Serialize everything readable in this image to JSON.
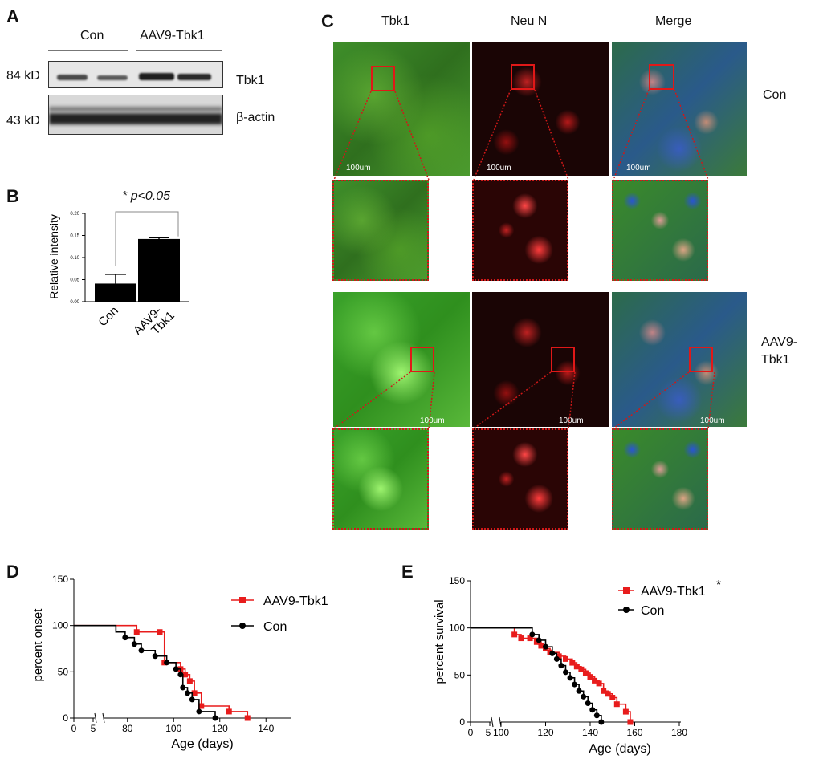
{
  "panelA": {
    "letter": "A",
    "group_con": "Con",
    "group_aav": "AAV9-Tbk1",
    "kd84": "84 kD",
    "kd43": "43 kD",
    "protein_tbk1": "Tbk1",
    "protein_actin": "β-actin"
  },
  "panelB": {
    "letter": "B",
    "sig_star": "*",
    "sig_p": "p<0.05",
    "chart_data": {
      "type": "bar",
      "categories": [
        "Con",
        "AAV9-Tbk1"
      ],
      "category_lines": [
        [
          "Con"
        ],
        [
          "AAV9-",
          "Tbk1"
        ]
      ],
      "values": [
        0.041,
        0.142
      ],
      "errors": [
        0.021,
        0.003
      ],
      "ylabel": "Relative intensity",
      "ylim": [
        0,
        0.2
      ],
      "yticks": [
        "0.00",
        "0.05",
        "0.10",
        "0.15",
        "0.20"
      ]
    }
  },
  "panelC": {
    "letter": "C",
    "col_tbk1": "Tbk1",
    "col_neun": "Neu N",
    "col_merge": "Merge",
    "row_con": "Con",
    "row_aav_line1": "AAV9-",
    "row_aav_line2": "Tbk1",
    "scale": "100um"
  },
  "panelD": {
    "letter": "D",
    "chart_data": {
      "type": "line",
      "ylabel": "percent onset",
      "xlabel": "Age (days)",
      "ylim": [
        0,
        150
      ],
      "yticks": [
        0,
        50,
        100,
        150
      ],
      "xticks": [
        "0",
        "5",
        "80",
        "100",
        "120",
        "140"
      ],
      "legend_position": "top-right",
      "series": [
        {
          "name": "AAV9-Tbk1",
          "color": "#e81c1c",
          "x": [
            0,
            75,
            84,
            94,
            96,
            103,
            105,
            107,
            109,
            112,
            124,
            132
          ],
          "y": [
            100,
            100,
            93,
            93,
            60,
            53,
            47,
            40,
            27,
            13,
            7,
            0
          ]
        },
        {
          "name": "Con",
          "color": "#000000",
          "x": [
            0,
            75,
            79,
            83,
            86,
            92,
            97,
            101,
            103,
            104,
            106,
            108,
            111,
            118
          ],
          "y": [
            100,
            93,
            87,
            80,
            73,
            67,
            60,
            53,
            47,
            33,
            27,
            20,
            7,
            0
          ]
        }
      ]
    }
  },
  "panelE": {
    "letter": "E",
    "sig_star": "*",
    "chart_data": {
      "type": "line",
      "ylabel": "percent survival",
      "xlabel": "Age (days)",
      "ylim": [
        0,
        150
      ],
      "yticks": [
        0,
        50,
        100,
        150
      ],
      "xticks": [
        "0",
        "5",
        "100",
        "120",
        "140",
        "160",
        "180"
      ],
      "legend_position": "top-right",
      "series": [
        {
          "name": "AAV9-Tbk1",
          "color": "#e81c1c",
          "x": [
            0,
            100,
            106,
            109,
            113,
            116,
            118,
            120,
            122,
            126,
            129,
            132,
            134,
            136,
            138,
            140,
            142,
            144,
            146,
            148,
            150,
            152,
            156,
            158
          ],
          "y": [
            100,
            100,
            93,
            89,
            89,
            85,
            81,
            78,
            74,
            70,
            67,
            63,
            59,
            56,
            52,
            48,
            44,
            41,
            33,
            30,
            26,
            19,
            11,
            0
          ]
        },
        {
          "name": "Con",
          "color": "#000000",
          "x": [
            0,
            100,
            114,
            117,
            120,
            123,
            125,
            127,
            129,
            131,
            133,
            135,
            137,
            139,
            141,
            143,
            145
          ],
          "y": [
            100,
            100,
            93,
            87,
            80,
            73,
            67,
            60,
            53,
            47,
            40,
            33,
            27,
            20,
            13,
            7,
            0
          ]
        }
      ]
    }
  }
}
